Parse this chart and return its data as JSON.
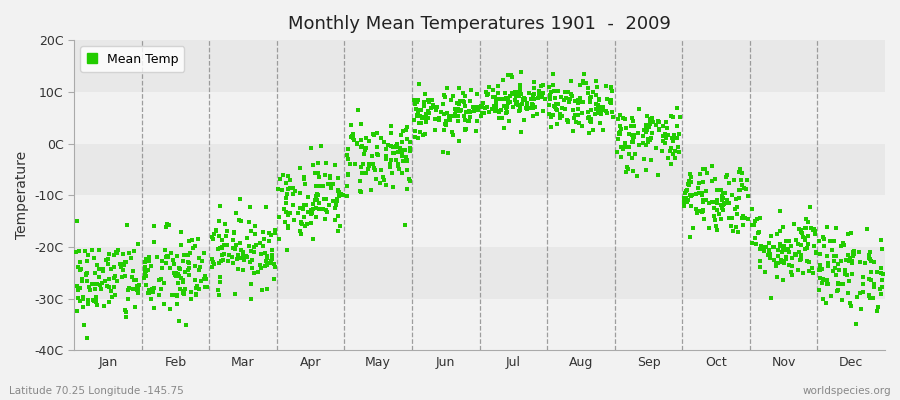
{
  "title": "Monthly Mean Temperatures 1901  -  2009",
  "ylabel": "Temperature",
  "ylim": [
    -40,
    20
  ],
  "yticks": [
    -40,
    -30,
    -20,
    -10,
    0,
    10,
    20
  ],
  "ytick_labels": [
    "-40C",
    "-30C",
    "-20C",
    "-10C",
    "0C",
    "10C",
    "20C"
  ],
  "month_labels": [
    "Jan",
    "Feb",
    "Mar",
    "Apr",
    "May",
    "Jun",
    "Jul",
    "Aug",
    "Sep",
    "Oct",
    "Nov",
    "Dec"
  ],
  "month_means": [
    -26.5,
    -25.5,
    -20.5,
    -10.5,
    -2.5,
    5.5,
    8.5,
    7.0,
    1.0,
    -10.5,
    -20.0,
    -24.5
  ],
  "month_stds": [
    4.2,
    4.5,
    3.5,
    3.8,
    3.8,
    2.5,
    2.2,
    2.5,
    3.2,
    3.5,
    3.5,
    4.0
  ],
  "n_years": 109,
  "marker_color": "#22cc00",
  "marker_size": 9,
  "bg_color": "#f2f2f2",
  "band_colors": [
    "#f2f2f2",
    "#e8e8e8"
  ],
  "legend_label": "Mean Temp",
  "footer_left": "Latitude 70.25 Longitude -145.75",
  "footer_right": "worldspecies.org",
  "dashed_line_color": "#888888",
  "seed": 42
}
